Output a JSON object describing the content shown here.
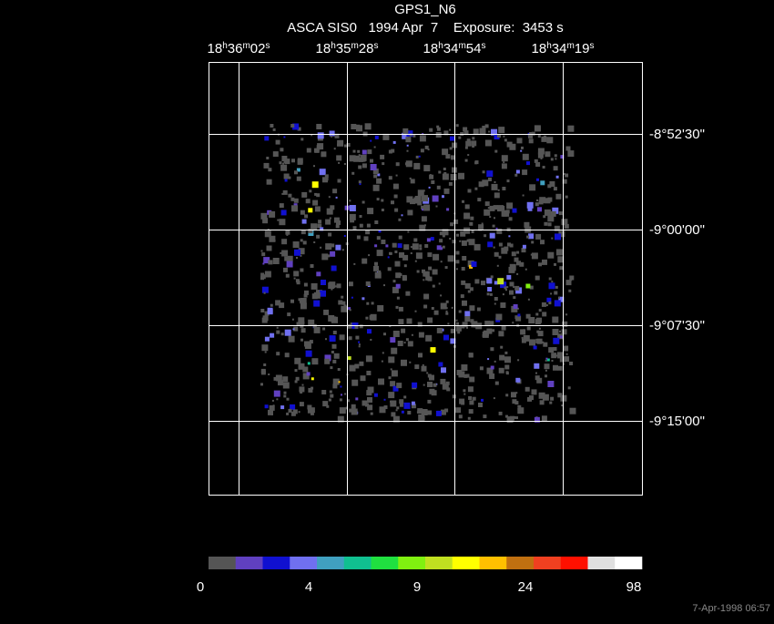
{
  "title": "GPS1_N6",
  "subtitle": "ASCA SIS0   1994 Apr  7    Exposure:  3453 s",
  "ra_labels": [
    [
      "18",
      "h",
      "36",
      "m",
      "02",
      "s"
    ],
    [
      "18",
      "h",
      "35",
      "m",
      "28",
      "s"
    ],
    [
      "18",
      "h",
      "34",
      "m",
      "54",
      "s"
    ],
    [
      "18",
      "h",
      "34",
      "m",
      "19",
      "s"
    ]
  ],
  "dec_labels": [
    "-8°52'30\"",
    "-9°00'00\"",
    "-9°07'30\"",
    "-9°15'00\""
  ],
  "colorbar": {
    "colors": [
      "#555555",
      "#6040c0",
      "#1010d0",
      "#7070f0",
      "#40a0c0",
      "#10c090",
      "#20e040",
      "#80f010",
      "#c0e020",
      "#ffff00",
      "#ffc000",
      "#c07010",
      "#f04020",
      "#ff1000",
      "#e0e0e0",
      "#ffffff"
    ],
    "labels": [
      0,
      4,
      9,
      24,
      98
    ]
  },
  "timestamp": "7-Apr-1998 06:57"
}
